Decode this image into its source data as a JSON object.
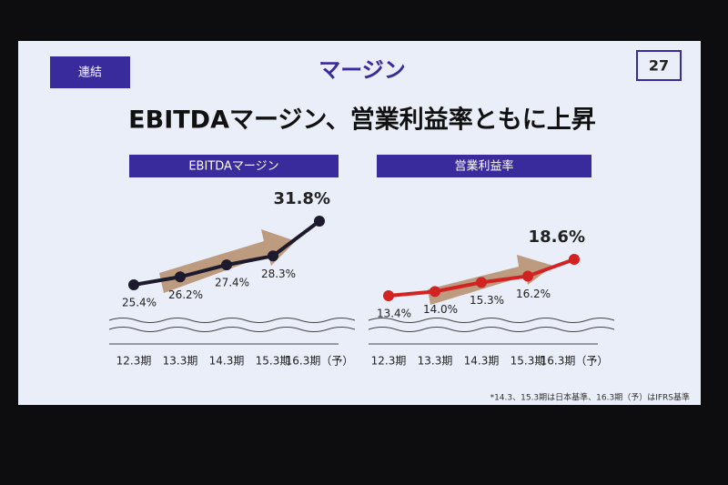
{
  "slide": {
    "tag": "連結",
    "title": "マージン",
    "page": "27",
    "headline": "EBITDAマージン、営業利益率ともに上昇",
    "footnote": "*14.3、15.3期は日本基準、16.3期（予）はIFRS基準"
  },
  "chart_data": [
    {
      "type": "line",
      "title": "EBITDAマージン",
      "categories": [
        "12.3期",
        "13.3期",
        "14.3期",
        "15.3期",
        "16.3期（予）"
      ],
      "series": [
        {
          "color": "#1c1a2c",
          "values": [
            25.4,
            26.2,
            27.4,
            28.3,
            31.8
          ],
          "value_labels": [
            "25.4%",
            "26.2%",
            "27.4%",
            "28.3%",
            "31.8%"
          ]
        }
      ]
    },
    {
      "type": "line",
      "title": "営業利益率",
      "categories": [
        "12.3期",
        "13.3期",
        "14.3期",
        "15.3期",
        "16.3期（予）"
      ],
      "series": [
        {
          "color": "#d22222",
          "values": [
            13.4,
            14.0,
            15.3,
            16.2,
            18.6
          ],
          "value_labels": [
            "13.4%",
            "14.0%",
            "15.3%",
            "16.2%",
            "18.6%"
          ]
        }
      ]
    }
  ]
}
